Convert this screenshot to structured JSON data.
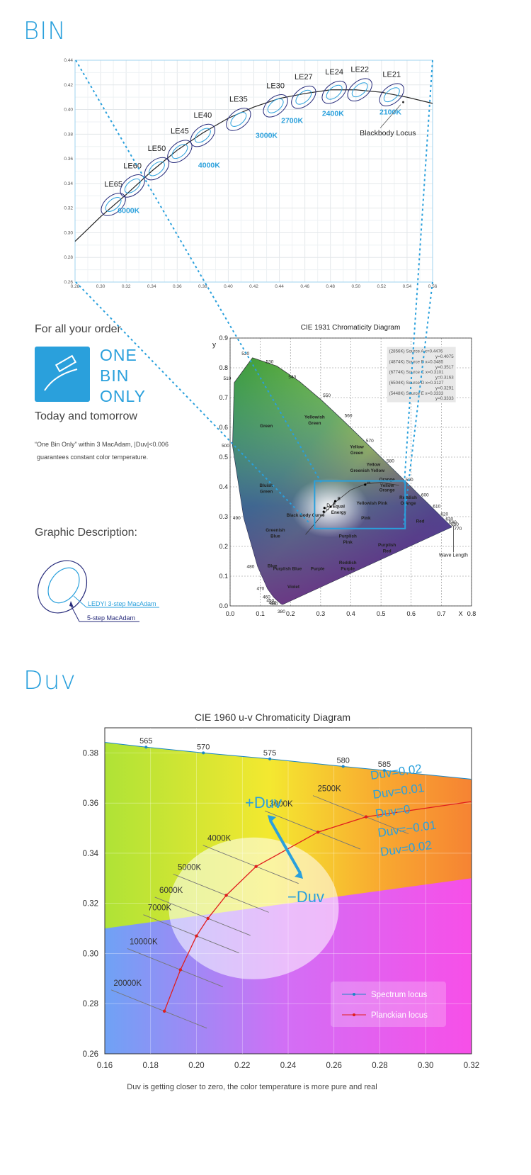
{
  "sections": {
    "bin_title": "BIN",
    "duv_title": "Duv"
  },
  "left_panel": {
    "tagline": "For all your order",
    "badge_lines": [
      "ONE",
      "BIN",
      "ONLY"
    ],
    "subtag": "Today and tomorrow",
    "note_line1": "“One Bin Only” within 3 MacAdam, |Duv|<0.006",
    "note_line2": "guarantees constant color temperature.",
    "graphic_heading": "Graphic Description:",
    "legend_inner": "LEDYI 3-step MacAdam",
    "legend_outer": "5-step MacAdam"
  },
  "colors": {
    "accent": "#2aa0dc",
    "navy": "#262a7a",
    "locus": "#222222",
    "planck": "#e01e1e"
  },
  "chart_data": [
    {
      "type": "scatter",
      "title": "",
      "xlim": [
        0.28,
        0.56
      ],
      "ylim": [
        0.26,
        0.44
      ],
      "x_ticks": [
        "0.28",
        "0.30",
        "0.32",
        "0.34",
        "0.36",
        "0.38",
        "0.40",
        "0.42",
        "0.44",
        "0.46",
        "0.48",
        "0.50",
        "0.52",
        "0.54",
        "0.56"
      ],
      "y_ticks": [
        "0.26",
        "0.28",
        "0.30",
        "0.32",
        "0.34",
        "0.36",
        "0.38",
        "0.40",
        "0.42",
        "0.44"
      ],
      "grid": true,
      "bins": [
        {
          "name": "LE65",
          "x": 0.31,
          "y": 0.323,
          "cct": ""
        },
        {
          "name": "LE60",
          "x": 0.325,
          "y": 0.338,
          "cct": "6000K"
        },
        {
          "name": "LE50",
          "x": 0.344,
          "y": 0.352,
          "cct": ""
        },
        {
          "name": "LE45",
          "x": 0.362,
          "y": 0.366,
          "cct": ""
        },
        {
          "name": "LE40",
          "x": 0.38,
          "y": 0.379,
          "cct": "4000K"
        },
        {
          "name": "LE35",
          "x": 0.408,
          "y": 0.392,
          "cct": "3000K"
        },
        {
          "name": "LE30",
          "x": 0.437,
          "y": 0.403,
          "cct": "2700K"
        },
        {
          "name": "LE27",
          "x": 0.459,
          "y": 0.41,
          "cct": "2400K"
        },
        {
          "name": "LE24",
          "x": 0.483,
          "y": 0.414,
          "cct": ""
        },
        {
          "name": "LE22",
          "x": 0.503,
          "y": 0.416,
          "cct": ""
        },
        {
          "name": "LE21",
          "x": 0.528,
          "y": 0.412,
          "cct": "2100K"
        }
      ],
      "cct_labels": [
        {
          "text": "6000K",
          "x": 0.322,
          "y": 0.316
        },
        {
          "text": "4000K",
          "x": 0.385,
          "y": 0.353
        },
        {
          "text": "3000K",
          "x": 0.43,
          "y": 0.377
        },
        {
          "text": "2700K",
          "x": 0.45,
          "y": 0.389
        },
        {
          "text": "2400K",
          "x": 0.482,
          "y": 0.395
        },
        {
          "text": "2100K",
          "x": 0.527,
          "y": 0.396
        }
      ],
      "annotation": "Blackbody Locus",
      "locus": [
        [
          0.28,
          0.293
        ],
        [
          0.3,
          0.313
        ],
        [
          0.32,
          0.331
        ],
        [
          0.34,
          0.35
        ],
        [
          0.36,
          0.367
        ],
        [
          0.38,
          0.381
        ],
        [
          0.4,
          0.393
        ],
        [
          0.42,
          0.402
        ],
        [
          0.44,
          0.409
        ],
        [
          0.46,
          0.413
        ],
        [
          0.48,
          0.416
        ],
        [
          0.5,
          0.416
        ],
        [
          0.52,
          0.414
        ],
        [
          0.54,
          0.41
        ],
        [
          0.56,
          0.405
        ]
      ]
    },
    {
      "type": "scatter",
      "title": "CIE 1931 Chromaticity Diagram",
      "xlabel": "X",
      "ylabel": "y",
      "xlim": [
        0.0,
        0.8
      ],
      "ylim": [
        0.0,
        0.9
      ],
      "x_ticks": [
        "0.0",
        "0.1",
        "0.2",
        "0.3",
        "0.4",
        "0.5",
        "0.6",
        "0.7",
        "0.8"
      ],
      "y_ticks": [
        "0.0",
        "0.1",
        "0.2",
        "0.3",
        "0.4",
        "0.5",
        "0.6",
        "0.7",
        "0.8",
        "0.9"
      ],
      "grid": true,
      "legend_box": [
        "(2856K) Source A x=0.4476",
        "y=0.4075",
        "(4874K) Source B x=0.3485",
        "y=0.3517",
        "(6774K) Source C x=0.3101",
        "y=0.3163",
        "(6504K) Source D x=0.3127",
        "y=0.3291",
        "(5448K) Source E x=0.3333",
        "y=0.3333"
      ],
      "spectrum_locus": [
        {
          "nm": "380",
          "x": 0.1741,
          "y": 0.005
        },
        {
          "nm": "430",
          "x": 0.1689,
          "y": 0.0069
        },
        {
          "nm": "440",
          "x": 0.1644,
          "y": 0.0109
        },
        {
          "nm": "450",
          "x": 0.1566,
          "y": 0.0177
        },
        {
          "nm": "460",
          "x": 0.144,
          "y": 0.0297
        },
        {
          "nm": "470",
          "x": 0.1241,
          "y": 0.0578
        },
        {
          "nm": "480",
          "x": 0.0913,
          "y": 0.1327
        },
        {
          "nm": "490",
          "x": 0.0454,
          "y": 0.295
        },
        {
          "nm": "500",
          "x": 0.0082,
          "y": 0.5384
        },
        {
          "nm": "510",
          "x": 0.0139,
          "y": 0.7502
        },
        {
          "nm": "520",
          "x": 0.0743,
          "y": 0.8338
        },
        {
          "nm": "530",
          "x": 0.1547,
          "y": 0.8059
        },
        {
          "nm": "540",
          "x": 0.2296,
          "y": 0.7543
        },
        {
          "nm": "550",
          "x": 0.3016,
          "y": 0.6923
        },
        {
          "nm": "560",
          "x": 0.3731,
          "y": 0.6245
        },
        {
          "nm": "570",
          "x": 0.4441,
          "y": 0.5547
        },
        {
          "nm": "580",
          "x": 0.5125,
          "y": 0.4866
        },
        {
          "nm": "590",
          "x": 0.5752,
          "y": 0.4242
        },
        {
          "nm": "600",
          "x": 0.627,
          "y": 0.3725
        },
        {
          "nm": "610",
          "x": 0.6658,
          "y": 0.334
        },
        {
          "nm": "620",
          "x": 0.6915,
          "y": 0.3083
        },
        {
          "nm": "630",
          "x": 0.7079,
          "y": 0.292
        },
        {
          "nm": "640",
          "x": 0.719,
          "y": 0.2809
        },
        {
          "nm": "650",
          "x": 0.726,
          "y": 0.274
        },
        {
          "nm": "770",
          "x": 0.7347,
          "y": 0.2653
        }
      ],
      "regions": [
        {
          "text": "Green",
          "x": 0.12,
          "y": 0.6
        },
        {
          "text": "Yellowish",
          "x": 0.28,
          "y": 0.63
        },
        {
          "text": "Green",
          "x": 0.28,
          "y": 0.61
        },
        {
          "text": "Yellow",
          "x": 0.42,
          "y": 0.53
        },
        {
          "text": "Green",
          "x": 0.42,
          "y": 0.51
        },
        {
          "text": "Greenish Yellow",
          "x": 0.455,
          "y": 0.45
        },
        {
          "text": "Yellow",
          "x": 0.475,
          "y": 0.47
        },
        {
          "text": "Orange",
          "x": 0.52,
          "y": 0.42
        },
        {
          "text": "Yellow",
          "x": 0.52,
          "y": 0.4
        },
        {
          "text": "Orange",
          "x": 0.52,
          "y": 0.385
        },
        {
          "text": "Bluish",
          "x": 0.12,
          "y": 0.4
        },
        {
          "text": "Green",
          "x": 0.12,
          "y": 0.38
        },
        {
          "text": "Yellowish Pink",
          "x": 0.47,
          "y": 0.34
        },
        {
          "text": "Reddish",
          "x": 0.59,
          "y": 0.36
        },
        {
          "text": "Orange",
          "x": 0.59,
          "y": 0.34
        },
        {
          "text": "Red",
          "x": 0.63,
          "y": 0.28
        },
        {
          "text": "Pink",
          "x": 0.45,
          "y": 0.29
        },
        {
          "text": "Greenish",
          "x": 0.15,
          "y": 0.25
        },
        {
          "text": "Blue",
          "x": 0.15,
          "y": 0.23
        },
        {
          "text": "Purplish",
          "x": 0.39,
          "y": 0.23
        },
        {
          "text": "Pink",
          "x": 0.39,
          "y": 0.21
        },
        {
          "text": "Purplish",
          "x": 0.52,
          "y": 0.2
        },
        {
          "text": "Red",
          "x": 0.52,
          "y": 0.18
        },
        {
          "text": "Reddish",
          "x": 0.39,
          "y": 0.14
        },
        {
          "text": "Purple",
          "x": 0.39,
          "y": 0.12
        },
        {
          "text": "Blue",
          "x": 0.14,
          "y": 0.13
        },
        {
          "text": "Purple",
          "x": 0.29,
          "y": 0.12
        },
        {
          "text": "Purplish Blue",
          "x": 0.19,
          "y": 0.12
        },
        {
          "text": "Violet",
          "x": 0.21,
          "y": 0.06
        },
        {
          "text": "Black Body Curve",
          "x": 0.25,
          "y": 0.3
        },
        {
          "text": "Equal",
          "x": 0.36,
          "y": 0.33
        },
        {
          "text": "Energy",
          "x": 0.36,
          "y": 0.31
        }
      ],
      "points": [
        {
          "label": "A",
          "x": 0.4476,
          "y": 0.4075
        },
        {
          "label": "B",
          "x": 0.3485,
          "y": 0.3517
        },
        {
          "label": "C",
          "x": 0.3101,
          "y": 0.3163
        },
        {
          "label": "D",
          "x": 0.3127,
          "y": 0.3291
        },
        {
          "label": "E",
          "x": 0.3333,
          "y": 0.3333
        }
      ],
      "annotation": "Wave Length"
    },
    {
      "type": "line",
      "title": "CIE 1960 u-v Chromaticity Diagram",
      "xlim": [
        0.16,
        0.32
      ],
      "ylim": [
        0.26,
        0.39
      ],
      "x_ticks": [
        "0.16",
        "0.18",
        "0.20",
        "0.22",
        "0.24",
        "0.26",
        "0.28",
        "0.30",
        "0.32"
      ],
      "y_ticks": [
        "0.26",
        "0.28",
        "0.30",
        "0.32",
        "0.34",
        "0.36",
        "0.38"
      ],
      "series": [
        {
          "name": "Spectrum locus",
          "color": "#1a86c6",
          "points": [
            [
              0.16,
              0.3842
            ],
            [
              0.178,
              0.3823
            ],
            [
              0.203,
              0.38
            ],
            [
              0.232,
              0.3776
            ],
            [
              0.264,
              0.3746
            ],
            [
              0.282,
              0.373
            ],
            [
              0.32,
              0.3695
            ]
          ],
          "labels": [
            {
              "text": "565",
              "x": 0.178,
              "y": 0.3823
            },
            {
              "text": "570",
              "x": 0.203,
              "y": 0.38
            },
            {
              "text": "575",
              "x": 0.232,
              "y": 0.3776
            },
            {
              "text": "580",
              "x": 0.264,
              "y": 0.3746
            },
            {
              "text": "585",
              "x": 0.282,
              "y": 0.373
            }
          ]
        },
        {
          "name": "Planckian locus",
          "color": "#e01e1e",
          "points": [
            [
              0.186,
              0.277
            ],
            [
              0.193,
              0.2935
            ],
            [
              0.2,
              0.307
            ],
            [
              0.205,
              0.314
            ],
            [
              0.213,
              0.3232
            ],
            [
              0.226,
              0.3347
            ],
            [
              0.253,
              0.3484
            ],
            [
              0.274,
              0.3545
            ],
            [
              0.32,
              0.3606
            ]
          ]
        }
      ],
      "isotherms": [
        {
          "text": "20000K",
          "x": 0.186,
          "y": 0.277
        },
        {
          "text": "10000K",
          "x": 0.193,
          "y": 0.2935
        },
        {
          "text": "7000K",
          "x": 0.2,
          "y": 0.307
        },
        {
          "text": "6000K",
          "x": 0.205,
          "y": 0.314
        },
        {
          "text": "5000K",
          "x": 0.213,
          "y": 0.3232
        },
        {
          "text": "4000K",
          "x": 0.226,
          "y": 0.3347
        },
        {
          "text": "3000K",
          "x": 0.253,
          "y": 0.3484
        },
        {
          "text": "2500K",
          "x": 0.274,
          "y": 0.3545
        }
      ],
      "duv_labels": [
        "Duv=0.02",
        "Duv=0.01",
        "Duv=0",
        "Duv=−0.01",
        "Duv=0.02"
      ],
      "arrow_up_label": "+Duv",
      "arrow_down_label": "−Duv",
      "caption": "Duv is getting closer to zero, the color temperature is more pure and real"
    }
  ]
}
